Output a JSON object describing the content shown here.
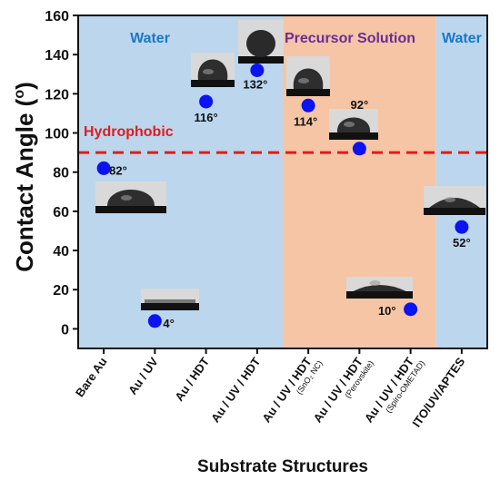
{
  "chart_data": {
    "type": "scatter",
    "xlabel": "Substrate Structures",
    "ylabel": "Contact Angle (°)",
    "ylabel_main": "Contact Angle (",
    "ylabel_sup": "o",
    "ylabel_end": ")",
    "ylim": [
      -10,
      160
    ],
    "yticks": [
      0,
      20,
      40,
      60,
      80,
      100,
      120,
      140,
      160
    ],
    "grid": false,
    "categories": [
      {
        "label": "Bare Au",
        "sub": ""
      },
      {
        "label": "Au / UV",
        "sub": ""
      },
      {
        "label": "Au / HDT",
        "sub": ""
      },
      {
        "label": "Au / UV / HDT",
        "sub": ""
      },
      {
        "label": "Au / UV / HDT",
        "sub": "(SnO₂ NC)"
      },
      {
        "label": "Au / UV / HDT",
        "sub": "(Perovskite)"
      },
      {
        "label": "Au / UV / HDT",
        "sub": "(Spiro-OMETAD)"
      },
      {
        "label": "ITO/UV/APTES",
        "sub": ""
      }
    ],
    "values": [
      82,
      4,
      116,
      132,
      114,
      92,
      10,
      52
    ],
    "value_labels": [
      "82°",
      "4°",
      "116°",
      "132°",
      "114°",
      "92°",
      "10°",
      "52°"
    ],
    "point_color": "#0a14f0",
    "threshold": {
      "value": 90,
      "label": "Hydrophobic",
      "color": "#e01b1b"
    },
    "regions": [
      {
        "label": "Water",
        "from_index": 0,
        "to_index": 3,
        "color": "#bcd6ee",
        "label_color": "#1a78c8"
      },
      {
        "label": "Precursor Solution",
        "from_index": 4,
        "to_index": 6,
        "color": "#f5c5a6",
        "label_color": "#6a2d96"
      },
      {
        "label": "Water",
        "from_index": 7,
        "to_index": 7,
        "color": "#bcd6ee",
        "label_color": "#1a78c8"
      }
    ],
    "droplet_images": [
      {
        "index": 0,
        "shape": "cap-low"
      },
      {
        "index": 1,
        "shape": "flat"
      },
      {
        "index": 2,
        "shape": "cap-tall"
      },
      {
        "index": 3,
        "shape": "sphere"
      },
      {
        "index": 4,
        "shape": "cap-tall"
      },
      {
        "index": 5,
        "shape": "cap-mid"
      },
      {
        "index": 6,
        "shape": "flat-dark"
      },
      {
        "index": 7,
        "shape": "cap-shallow"
      }
    ]
  }
}
